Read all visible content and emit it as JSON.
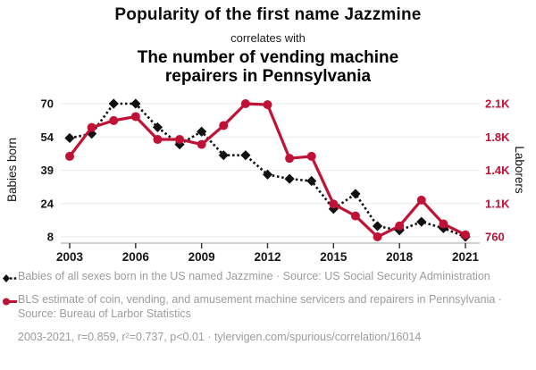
{
  "header": {
    "title": "Popularity of the first name Jazzmine",
    "connector": "correlates with",
    "subtitle": "The number of vending machine repairers in Pennsylvania"
  },
  "colors": {
    "accent_red": "#c01236",
    "series_black": "#111111",
    "gridline": "#ededed",
    "axis_line": "#b3b3b3",
    "tick_mark": "#3a3a3a",
    "footer_gray": "#9c9c9c"
  },
  "chart_data": {
    "type": "line",
    "x": [
      2003,
      2004,
      2005,
      2006,
      2007,
      2008,
      2009,
      2010,
      2011,
      2012,
      2013,
      2014,
      2015,
      2016,
      2017,
      2018,
      2019,
      2020,
      2021
    ],
    "x_ticks": [
      2003,
      2006,
      2009,
      2012,
      2015,
      2018,
      2021
    ],
    "grid": true,
    "legend_position": "bottom",
    "series": [
      {
        "name": "Babies of all sexes born in the US named Jazzmine",
        "axis": "left",
        "color": "#111111",
        "marker": "diamond",
        "dash": true,
        "values": [
          54,
          56,
          70,
          70,
          59,
          51,
          57,
          46,
          46,
          37,
          35,
          34,
          21,
          28,
          13,
          11,
          15,
          12,
          8
        ]
      },
      {
        "name": "BLS estimate of coin, vending, and amusement machine servicers and repairers in Pennsylvania",
        "axis": "right",
        "color": "#c01236",
        "marker": "circle",
        "dash": false,
        "values": [
          1570,
          1860,
          1930,
          1970,
          1740,
          1740,
          1690,
          1880,
          2100,
          2090,
          1550,
          1570,
          1090,
          970,
          760,
          870,
          1130,
          890,
          780
        ]
      }
    ],
    "left_axis": {
      "label": "Babies born",
      "min": 8,
      "max": 70,
      "tick_labels": [
        "70",
        "54",
        "39",
        "24",
        "8"
      ]
    },
    "right_axis": {
      "label": "Laborers",
      "min": 760,
      "max": 2100,
      "tick_labels": [
        "2.1K",
        "1.8K",
        "1.4K",
        "1.1K",
        "760"
      ]
    }
  },
  "legend": {
    "series1": "Babies of all sexes born in the US named Jazzmine · Source: US Social Security Administration",
    "series2": "BLS estimate of coin, vending, and amusement machine servicers and repairers in Pennsylvania · Source: Bureau of Larbor Statistics",
    "stats": "2003-2021, r=0.859, r²=0.737, p<0.01 · tylervigen.com/spurious/correlation/16014"
  }
}
